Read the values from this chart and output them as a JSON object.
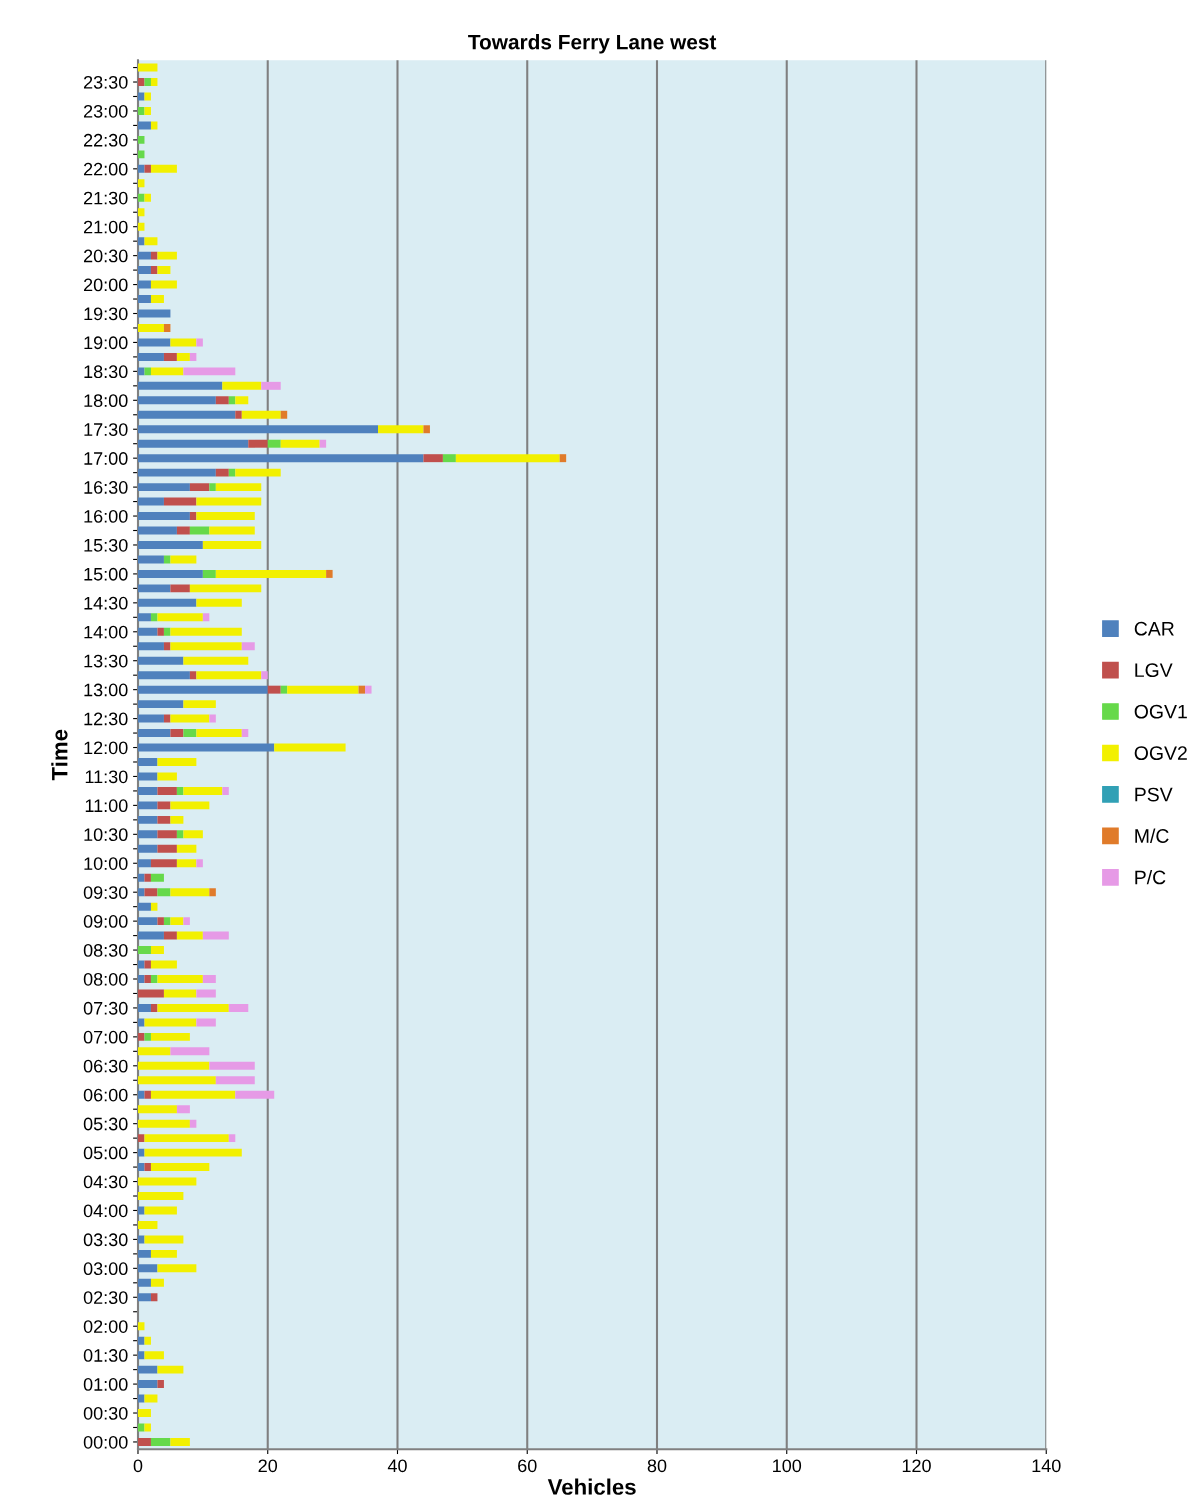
{
  "chart_data": {
    "type": "bar",
    "orientation": "horizontal",
    "stacked": true,
    "title": "Towards Ferry Lane west",
    "xlabel": "Vehicles",
    "ylabel": "Time",
    "categories": [
      null,
      "23:30",
      null,
      "23:00",
      null,
      "22:30",
      null,
      "22:00",
      null,
      "21:30",
      null,
      "21:00",
      null,
      "20:30",
      null,
      "20:00",
      null,
      "19:30",
      null,
      "19:00",
      null,
      "18:30",
      null,
      "18:00",
      null,
      "17:30",
      null,
      "17:00",
      null,
      "16:30",
      null,
      "16:00",
      null,
      "15:30",
      null,
      "15:00",
      null,
      "14:30",
      null,
      "14:00",
      null,
      "13:30",
      null,
      "13:00",
      null,
      "12:30",
      null,
      "12:00",
      null,
      "11:30",
      null,
      "11:00",
      null,
      "10:30",
      null,
      "10:00",
      null,
      "09:30",
      null,
      "09:00",
      null,
      "08:30",
      null,
      "08:00",
      null,
      "07:30",
      null,
      "07:00",
      null,
      "06:30",
      null,
      "06:00",
      null,
      "05:30",
      null,
      "05:00",
      null,
      "04:30",
      null,
      "04:00",
      null,
      "03:30",
      null,
      "03:00",
      null,
      "02:30",
      null,
      "02:00",
      null,
      "01:30",
      null,
      "01:00",
      null,
      "00:30",
      null,
      "00:00"
    ],
    "series": [
      {
        "name": "CAR",
        "color": "#4f81bd",
        "values": [
          0,
          0,
          1,
          0,
          2,
          0,
          0,
          1,
          0,
          0,
          0,
          0,
          1,
          2,
          2,
          2,
          2,
          5,
          0,
          5,
          4,
          1,
          13,
          12,
          15,
          37,
          17,
          44,
          12,
          8,
          4,
          8,
          6,
          10,
          4,
          10,
          5,
          9,
          2,
          3,
          4,
          7,
          8,
          20,
          7,
          4,
          5,
          21,
          3,
          3,
          3,
          3,
          3,
          3,
          3,
          2,
          1,
          1,
          2,
          3,
          4,
          0,
          1,
          1,
          0,
          2,
          1,
          0,
          0,
          0,
          0,
          1,
          0,
          0,
          0,
          1,
          1,
          0,
          0,
          1,
          0,
          1,
          2,
          3,
          2,
          2,
          0,
          0,
          1,
          1,
          3,
          3,
          1,
          0,
          0,
          0
        ]
      },
      {
        "name": "LGV",
        "color": "#c0504d",
        "values": [
          0,
          1,
          0,
          0,
          0,
          0,
          0,
          1,
          0,
          0,
          0,
          0,
          0,
          1,
          1,
          0,
          0,
          0,
          0,
          0,
          2,
          0,
          0,
          2,
          1,
          0,
          3,
          3,
          2,
          3,
          5,
          1,
          2,
          0,
          0,
          0,
          3,
          0,
          0,
          1,
          1,
          0,
          1,
          2,
          0,
          1,
          2,
          0,
          0,
          0,
          3,
          2,
          2,
          3,
          3,
          4,
          1,
          2,
          0,
          1,
          2,
          0,
          1,
          1,
          4,
          1,
          0,
          1,
          0,
          0,
          0,
          1,
          0,
          0,
          1,
          0,
          1,
          0,
          0,
          0,
          0,
          0,
          0,
          0,
          0,
          1,
          0,
          0,
          0,
          0,
          0,
          1,
          0,
          0,
          0,
          2
        ]
      },
      {
        "name": "OGV1",
        "color": "#66d94a",
        "values": [
          0,
          1,
          0,
          1,
          0,
          1,
          1,
          0,
          0,
          1,
          0,
          0,
          0,
          0,
          0,
          0,
          0,
          0,
          0,
          0,
          0,
          1,
          0,
          1,
          0,
          0,
          2,
          2,
          1,
          1,
          0,
          0,
          3,
          0,
          1,
          2,
          0,
          0,
          1,
          1,
          0,
          0,
          0,
          1,
          0,
          0,
          2,
          0,
          0,
          0,
          1,
          0,
          0,
          1,
          0,
          0,
          2,
          2,
          0,
          1,
          0,
          2,
          0,
          1,
          0,
          0,
          0,
          1,
          0,
          0,
          0,
          0,
          0,
          0,
          0,
          0,
          0,
          0,
          0,
          0,
          0,
          0,
          0,
          0,
          0,
          0,
          0,
          0,
          0,
          0,
          0,
          0,
          0,
          0,
          1,
          3
        ]
      },
      {
        "name": "OGV2",
        "color": "#f2f000",
        "values": [
          3,
          1,
          1,
          1,
          1,
          0,
          0,
          4,
          1,
          1,
          1,
          1,
          2,
          3,
          2,
          4,
          2,
          0,
          4,
          4,
          2,
          5,
          6,
          2,
          6,
          7,
          6,
          16,
          7,
          7,
          10,
          9,
          7,
          9,
          4,
          17,
          11,
          7,
          7,
          11,
          11,
          10,
          10,
          11,
          5,
          6,
          7,
          11,
          6,
          3,
          6,
          6,
          2,
          3,
          3,
          3,
          0,
          6,
          1,
          2,
          4,
          2,
          4,
          7,
          5,
          11,
          8,
          6,
          5,
          11,
          12,
          13,
          6,
          8,
          13,
          15,
          9,
          9,
          7,
          5,
          3,
          6,
          4,
          6,
          2,
          0,
          0,
          1,
          1,
          3,
          4,
          0,
          2,
          2,
          1,
          3
        ]
      },
      {
        "name": "PSV",
        "color": "#31a0b5",
        "values": [
          0,
          0,
          0,
          0,
          0,
          0,
          0,
          0,
          0,
          0,
          0,
          0,
          0,
          0,
          0,
          0,
          0,
          0,
          0,
          0,
          0,
          0,
          0,
          0,
          0,
          0,
          0,
          0,
          0,
          0,
          0,
          0,
          0,
          0,
          0,
          0,
          0,
          0,
          0,
          0,
          0,
          0,
          0,
          0,
          0,
          0,
          0,
          0,
          0,
          0,
          0,
          0,
          0,
          0,
          0,
          0,
          0,
          0,
          0,
          0,
          0,
          0,
          0,
          0,
          0,
          0,
          0,
          0,
          0,
          0,
          0,
          0,
          0,
          0,
          0,
          0,
          0,
          0,
          0,
          0,
          0,
          0,
          0,
          0,
          0,
          0,
          0,
          0,
          0,
          0,
          0,
          0,
          0,
          0,
          0,
          0
        ]
      },
      {
        "name": "M/C",
        "color": "#e07b2a",
        "values": [
          0,
          0,
          0,
          0,
          0,
          0,
          0,
          0,
          0,
          0,
          0,
          0,
          0,
          0,
          0,
          0,
          0,
          0,
          1,
          0,
          0,
          0,
          0,
          0,
          1,
          1,
          0,
          1,
          0,
          0,
          0,
          0,
          0,
          0,
          0,
          1,
          0,
          0,
          0,
          0,
          0,
          0,
          0,
          1,
          0,
          0,
          0,
          0,
          0,
          0,
          0,
          0,
          0,
          0,
          0,
          0,
          0,
          1,
          0,
          0,
          0,
          0,
          0,
          0,
          0,
          0,
          0,
          0,
          0,
          0,
          0,
          0,
          0,
          0,
          0,
          0,
          0,
          0,
          0,
          0,
          0,
          0,
          0,
          0,
          0,
          0,
          0,
          0,
          0,
          0,
          0,
          0,
          0,
          0,
          0,
          0
        ]
      },
      {
        "name": "P/C",
        "color": "#e69ae6",
        "values": [
          0,
          0,
          0,
          0,
          0,
          0,
          0,
          0,
          0,
          0,
          0,
          0,
          0,
          0,
          0,
          0,
          0,
          0,
          0,
          1,
          1,
          8,
          3,
          0,
          0,
          0,
          1,
          0,
          0,
          0,
          0,
          0,
          0,
          0,
          0,
          0,
          0,
          0,
          1,
          0,
          2,
          0,
          1,
          1,
          0,
          1,
          1,
          0,
          0,
          0,
          1,
          0,
          0,
          0,
          0,
          1,
          0,
          0,
          0,
          1,
          4,
          0,
          0,
          2,
          3,
          3,
          3,
          0,
          6,
          7,
          6,
          6,
          2,
          1,
          1,
          0,
          0,
          0,
          0,
          0,
          0,
          0,
          0,
          0,
          0,
          0,
          0,
          0,
          0,
          0,
          0,
          0,
          0,
          0,
          0,
          0
        ]
      }
    ],
    "xlim": [
      0,
      140
    ],
    "xticks": [
      0,
      20,
      40,
      60,
      80,
      100,
      120,
      140
    ],
    "grid": "x",
    "legend": "right",
    "marker": "square"
  }
}
